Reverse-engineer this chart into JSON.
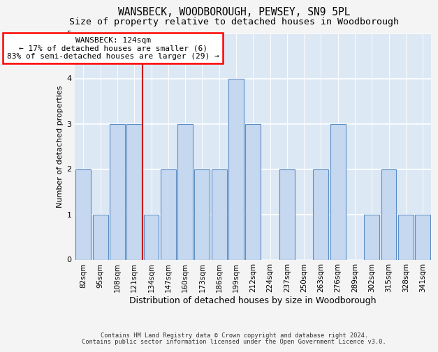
{
  "title": "WANSBECK, WOODBOROUGH, PEWSEY, SN9 5PL",
  "subtitle": "Size of property relative to detached houses in Woodborough",
  "xlabel": "Distribution of detached houses by size in Woodborough",
  "ylabel": "Number of detached properties",
  "footnote1": "Contains HM Land Registry data © Crown copyright and database right 2024.",
  "footnote2": "Contains public sector information licensed under the Open Government Licence v3.0.",
  "categories": [
    "82sqm",
    "95sqm",
    "108sqm",
    "121sqm",
    "134sqm",
    "147sqm",
    "160sqm",
    "173sqm",
    "186sqm",
    "199sqm",
    "212sqm",
    "224sqm",
    "237sqm",
    "250sqm",
    "263sqm",
    "276sqm",
    "289sqm",
    "302sqm",
    "315sqm",
    "328sqm",
    "341sqm"
  ],
  "values": [
    2,
    1,
    3,
    3,
    1,
    2,
    3,
    2,
    2,
    4,
    3,
    0,
    2,
    0,
    2,
    3,
    0,
    1,
    2,
    1,
    1
  ],
  "bar_color": "#c5d8f0",
  "bar_edge_color": "#5b8ec5",
  "ylim": [
    0,
    5
  ],
  "yticks": [
    0,
    1,
    2,
    3,
    4,
    5
  ],
  "vline_x_index": 3.5,
  "vline_color": "#cc0000",
  "annotation_line1": "WANSBECK: 124sqm",
  "annotation_line2": "← 17% of detached houses are smaller (6)",
  "annotation_line3": "83% of semi-detached houses are larger (29) →",
  "bg_color": "#dde8f5",
  "grid_color": "#ffffff",
  "fig_bg_color": "#f4f4f4",
  "title_fontsize": 10.5,
  "subtitle_fontsize": 9.5,
  "axis_label_fontsize": 9,
  "tick_fontsize": 7.5,
  "annotation_fontsize": 8,
  "ylabel_fontsize": 8
}
